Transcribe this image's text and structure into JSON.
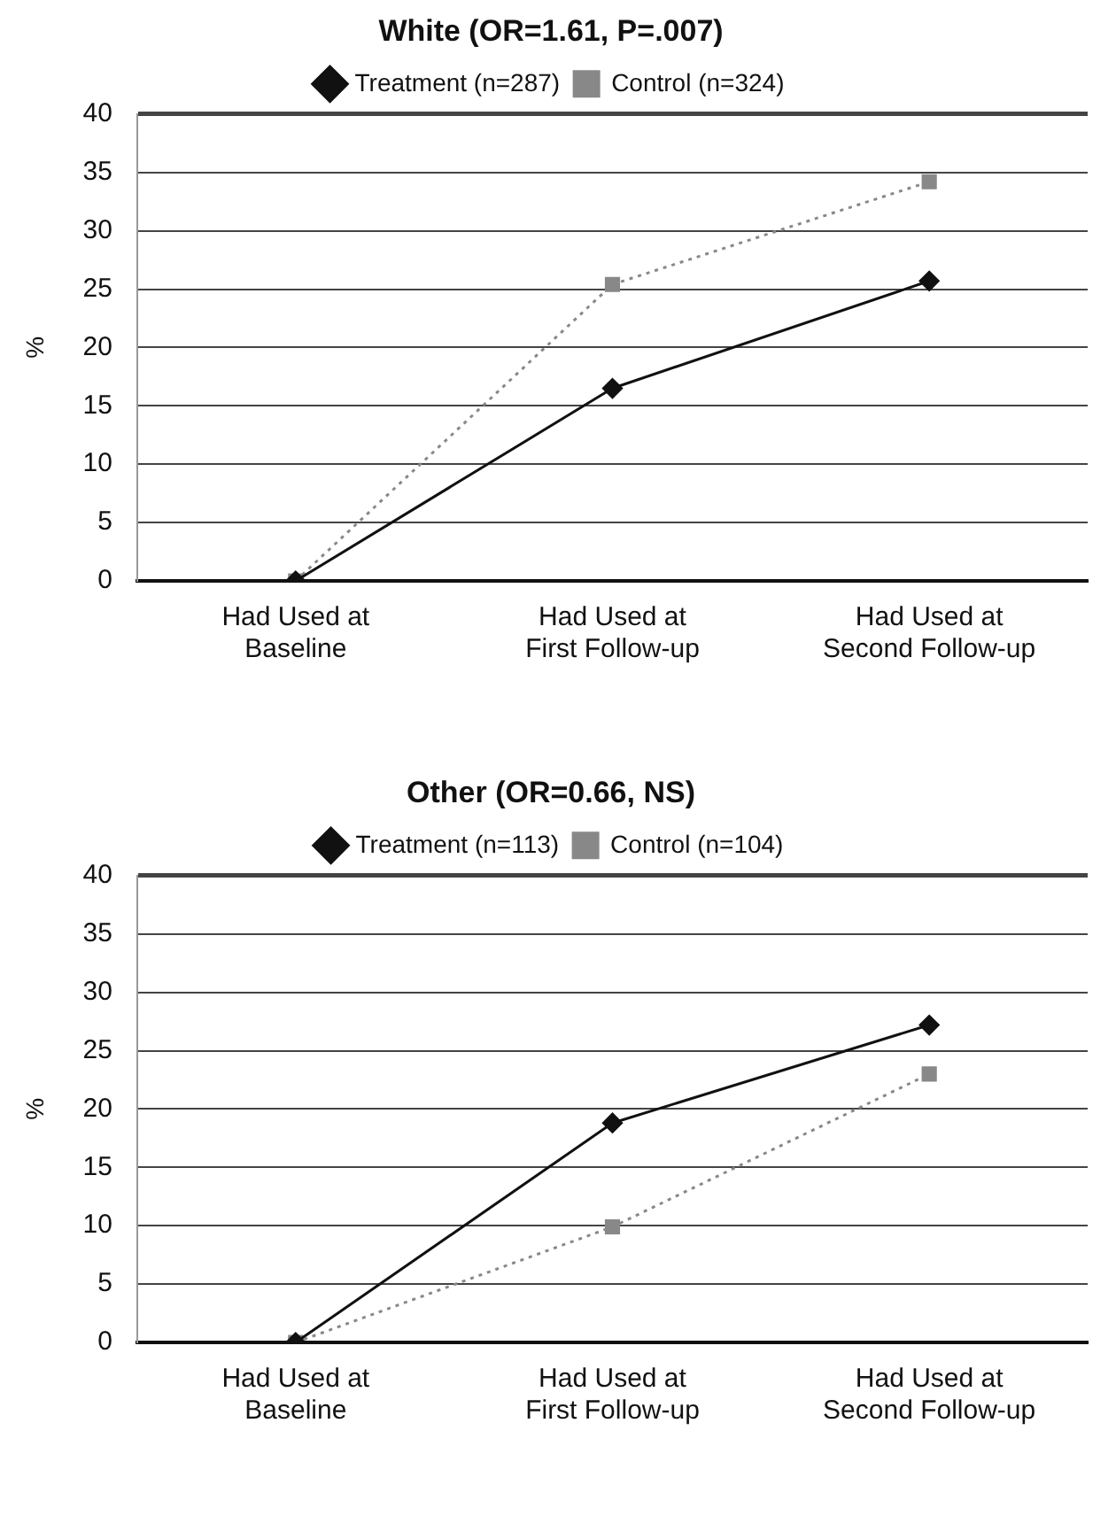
{
  "chart_data": [
    {
      "type": "line",
      "title": "White (OR=1.61, P=.007)",
      "ylabel": "%",
      "categories": [
        "Had Used at\nBaseline",
        "Had Used at\nFirst Follow-up",
        "Had Used at\nSecond Follow-up"
      ],
      "series": [
        {
          "name": "Treatment (n=287)",
          "color": "#111111",
          "values": [
            0,
            16.5,
            25.7
          ],
          "marker": "diamond",
          "line_style": "solid"
        },
        {
          "name": "Control (n=324)",
          "color": "#888888",
          "values": [
            0,
            25.4,
            34.2
          ],
          "marker": "square",
          "line_style": "dotted"
        }
      ],
      "ylim": [
        0,
        40
      ],
      "yticks": [
        0,
        5,
        10,
        15,
        20,
        25,
        30,
        35,
        40
      ],
      "grid": "y",
      "legend": "top"
    },
    {
      "type": "line",
      "title": "Other (OR=0.66, NS)",
      "ylabel": "%",
      "categories": [
        "Had Used at\nBaseline",
        "Had Used at\nFirst Follow-up",
        "Had Used at\nSecond Follow-up"
      ],
      "series": [
        {
          "name": "Treatment (n=113)",
          "color": "#111111",
          "values": [
            0,
            18.8,
            27.2
          ],
          "marker": "diamond",
          "line_style": "solid"
        },
        {
          "name": "Control (n=104)",
          "color": "#888888",
          "values": [
            0,
            9.9,
            23.0
          ],
          "marker": "square",
          "line_style": "dotted"
        }
      ],
      "ylim": [
        0,
        40
      ],
      "yticks": [
        0,
        5,
        10,
        15,
        20,
        25,
        30,
        35,
        40
      ],
      "grid": "y",
      "legend": "top"
    }
  ]
}
